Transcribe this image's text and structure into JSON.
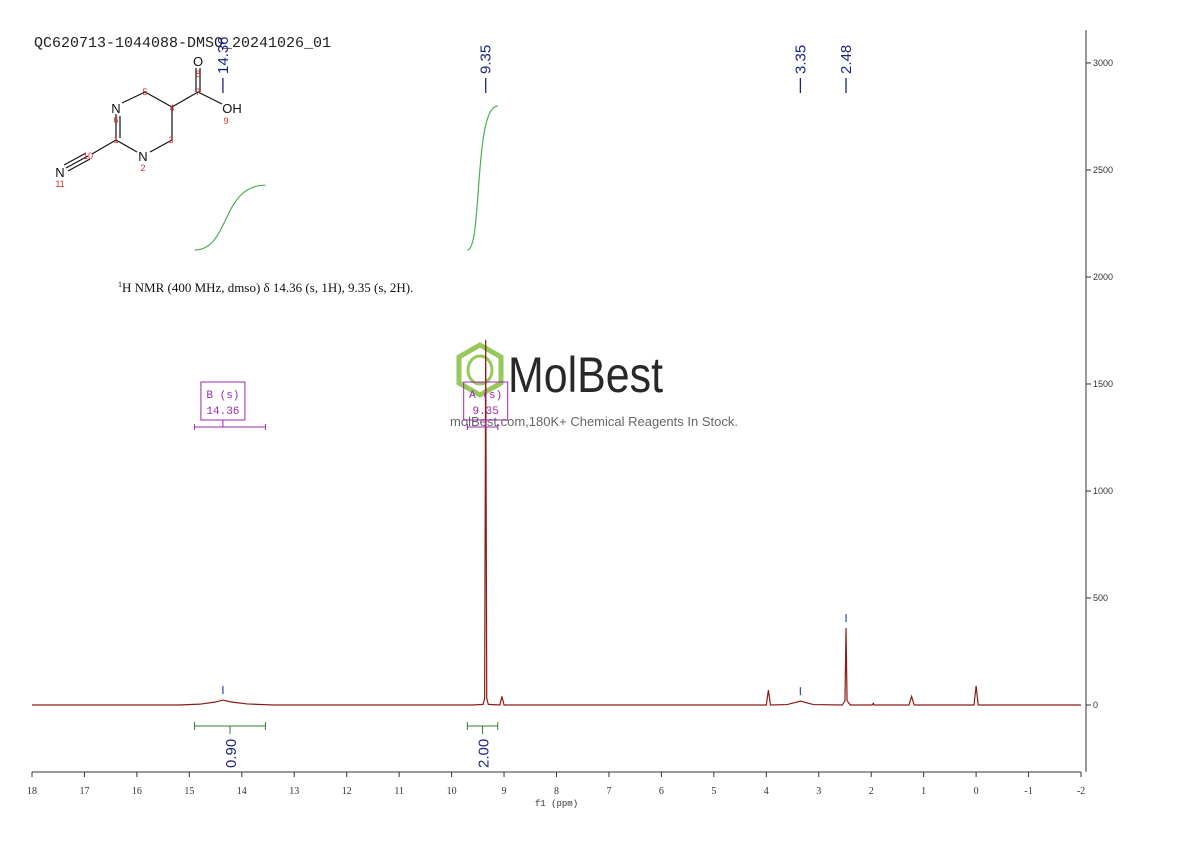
{
  "chart_data": {
    "type": "line",
    "title": "QC620713-1044088-DMSO_20241026_01",
    "description": {
      "superscript": "1",
      "text": "H NMR (400 MHz, dmso) δ 14.36 (s, 1H), 9.35 (s, 2H)."
    },
    "x_label": "f1 (ppm)",
    "xlim": [
      18,
      -2
    ],
    "xticks": [
      18,
      17,
      16,
      15,
      14,
      13,
      12,
      11,
      10,
      9,
      8,
      7,
      6,
      5,
      4,
      3,
      2,
      1,
      0,
      -1,
      -2
    ],
    "ylim": [
      -313,
      3154
    ],
    "yticks": [
      0,
      500,
      1000,
      1500,
      2000,
      2500,
      3000
    ],
    "series": [
      {
        "color": "#8b1a1a",
        "x": [
          18,
          15.2,
          14.8,
          14.5,
          14.36,
          14.2,
          13.9,
          13.4,
          9.6,
          9.4,
          9.37,
          9.35,
          9.33,
          9.3,
          9.08,
          9.04,
          9.0,
          4.0,
          3.96,
          3.92,
          3.6,
          3.35,
          3.1,
          2.55,
          2.5,
          2.48,
          2.46,
          2.4,
          1.98,
          1.96,
          1.94,
          1.28,
          1.23,
          1.18,
          0.04,
          0,
          -0.04,
          -2
        ],
        "values": [
          0,
          0,
          4,
          14,
          23,
          14,
          5,
          0,
          0,
          3,
          30,
          1706,
          30,
          3,
          0,
          40,
          0,
          0,
          70,
          0,
          2,
          18,
          2,
          0,
          20,
          360,
          20,
          0,
          0,
          8,
          0,
          0,
          40,
          0,
          0,
          89,
          0,
          0
        ]
      }
    ],
    "peak_labels": [
      14.36,
      9.35,
      3.35,
      2.48
    ],
    "integrals": [
      {
        "value": 0.9,
        "label": "0.90",
        "range": [
          14.9,
          13.55
        ]
      },
      {
        "value": 2,
        "label": "2.00",
        "range": [
          9.7,
          9.12
        ]
      }
    ],
    "multiplets": [
      {
        "label": "B (s)",
        "shift": 14.36,
        "range": [
          14.9,
          13.55
        ]
      },
      {
        "label": "A (s)",
        "shift": 9.35,
        "range": [
          9.7,
          9.12
        ]
      }
    ],
    "watermark": {
      "brand": "MolBest",
      "tagline": "molBest.com,180K+ Chemical Reagents In Stock."
    },
    "structure": {
      "symbols": [
        "O",
        "OH",
        "N",
        "N",
        "N"
      ],
      "numbers": [
        "1",
        "2",
        "3",
        "4",
        "5",
        "6",
        "7",
        "8",
        "9",
        "10",
        "11"
      ]
    }
  }
}
